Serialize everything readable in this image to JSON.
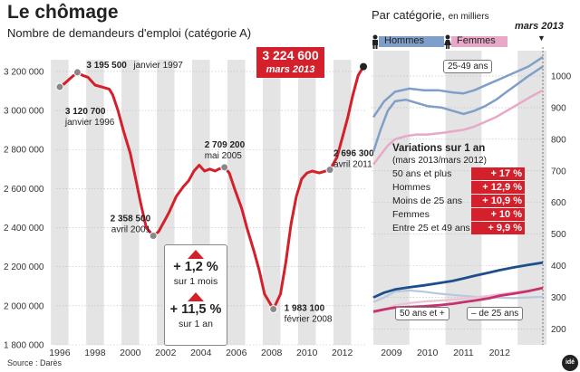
{
  "header": {
    "title": "Le chômage",
    "subtitle": "Nombre de demandeurs d'emploi (catégorie A)",
    "source": "Source : Darès",
    "logo_text": "idé"
  },
  "colors": {
    "red": "#d4202a",
    "blue": "#7f9ec8",
    "pink": "#e8a8c8",
    "darkblue": "#1f4e8c",
    "magenta": "#c4336e",
    "band": "#e4e4e4"
  },
  "chart_data": [
    {
      "type": "line",
      "title": "Nombre de demandeurs d'emploi (catégorie A)",
      "ylim": [
        1800000,
        3260000
      ],
      "xlim": [
        1995.8,
        2013.3
      ],
      "y_ticks": [
        1800000,
        2000000,
        2200000,
        2400000,
        2600000,
        2800000,
        3000000,
        3200000
      ],
      "y_tick_labels": [
        "1 800 000",
        "2 000 000",
        "2 200 000",
        "2 400 000",
        "2 600 000",
        "2 800 000",
        "3 000 000",
        "3 200 000"
      ],
      "x_ticks": [
        1996,
        1998,
        2000,
        2002,
        2004,
        2006,
        2008,
        2010,
        2012
      ],
      "x_tick_labels": [
        "1996",
        "1998",
        "2000",
        "2002",
        "2004",
        "2006",
        "2008",
        "2010",
        "2012"
      ],
      "grid": true,
      "series": [
        {
          "values": [
            [
              1996.0,
              3120700
            ],
            [
              1996.3,
              3140000
            ],
            [
              1996.6,
              3165000
            ],
            [
              1997.0,
              3195500
            ],
            [
              1997.3,
              3180000
            ],
            [
              1997.6,
              3170000
            ],
            [
              1998.0,
              3130000
            ],
            [
              1998.4,
              3120000
            ],
            [
              1998.8,
              3110000
            ],
            [
              1999.0,
              3080000
            ],
            [
              1999.3,
              3000000
            ],
            [
              1999.6,
              2900000
            ],
            [
              2000.0,
              2780000
            ],
            [
              2000.3,
              2650000
            ],
            [
              2000.6,
              2520000
            ],
            [
              2000.9,
              2400000
            ],
            [
              2001.3,
              2358500
            ],
            [
              2001.6,
              2380000
            ],
            [
              2001.9,
              2430000
            ],
            [
              2002.2,
              2480000
            ],
            [
              2002.6,
              2560000
            ],
            [
              2003.0,
              2610000
            ],
            [
              2003.3,
              2640000
            ],
            [
              2003.6,
              2690000
            ],
            [
              2003.9,
              2720000
            ],
            [
              2004.2,
              2690000
            ],
            [
              2004.5,
              2700000
            ],
            [
              2004.8,
              2690000
            ],
            [
              2005.0,
              2700000
            ],
            [
              2005.33,
              2709200
            ],
            [
              2005.6,
              2680000
            ],
            [
              2005.9,
              2600000
            ],
            [
              2006.3,
              2500000
            ],
            [
              2006.6,
              2400000
            ],
            [
              2007.0,
              2280000
            ],
            [
              2007.3,
              2180000
            ],
            [
              2007.6,
              2060000
            ],
            [
              2008.1,
              1983100
            ],
            [
              2008.5,
              2060000
            ],
            [
              2008.8,
              2220000
            ],
            [
              2009.1,
              2420000
            ],
            [
              2009.4,
              2560000
            ],
            [
              2009.7,
              2650000
            ],
            [
              2010.0,
              2680000
            ],
            [
              2010.3,
              2690000
            ],
            [
              2010.7,
              2680000
            ],
            [
              2011.3,
              2696300
            ],
            [
              2011.7,
              2760000
            ],
            [
              2012.0,
              2860000
            ],
            [
              2012.3,
              2960000
            ],
            [
              2012.6,
              3080000
            ],
            [
              2012.9,
              3180000
            ],
            [
              2013.2,
              3224600
            ]
          ]
        }
      ],
      "annotations": [
        {
          "x": 1996.0,
          "y": 3120700,
          "value": "3 120 700",
          "date": "janvier 1996"
        },
        {
          "x": 1997.0,
          "y": 3195500,
          "value": "3 195 500",
          "date": "janvier 1997"
        },
        {
          "x": 2001.3,
          "y": 2358500,
          "value": "2 358 500",
          "date": "avril 2001"
        },
        {
          "x": 2005.33,
          "y": 2709200,
          "value": "2 709 200",
          "date": "mai 2005"
        },
        {
          "x": 2008.1,
          "y": 1983100,
          "value": "1 983 100",
          "date": "février 2008"
        },
        {
          "x": 2011.3,
          "y": 2696300,
          "value": "2 696 300",
          "date": "avril 2011"
        }
      ],
      "highlight": {
        "x": 2013.2,
        "y": 3224600,
        "value": "3 224 600",
        "date": "mars 2013"
      }
    },
    {
      "type": "line",
      "title": "Par catégorie, en milliers",
      "ylim": [
        150,
        1080
      ],
      "xlim": [
        2008.45,
        2013.3
      ],
      "y_ticks": [
        200,
        300,
        400,
        500,
        600,
        700,
        800,
        900,
        1000
      ],
      "y_tick_labels": [
        "200",
        "300",
        "400",
        "500",
        "600",
        "700",
        "800",
        "900",
        "1000"
      ],
      "x_ticks": [
        2009,
        2010,
        2011,
        2012
      ],
      "x_tick_labels": [
        "2009",
        "2010",
        "2011",
        "2012"
      ],
      "marker": "mars 2013",
      "legend": [
        "Hommes",
        "Femmes"
      ],
      "series": [
        {
          "name": "Hommes",
          "color": "#7f9ec8",
          "values": [
            [
              2008.5,
              760
            ],
            [
              2008.7,
              830
            ],
            [
              2008.9,
              890
            ],
            [
              2009.1,
              920
            ],
            [
              2009.4,
              925
            ],
            [
              2009.7,
              915
            ],
            [
              2010.0,
              905
            ],
            [
              2010.4,
              900
            ],
            [
              2010.7,
              890
            ],
            [
              2011.0,
              880
            ],
            [
              2011.3,
              890
            ],
            [
              2011.6,
              905
            ],
            [
              2011.9,
              925
            ],
            [
              2012.2,
              950
            ],
            [
              2012.5,
              975
            ],
            [
              2012.8,
              1000
            ],
            [
              2013.2,
              1030
            ]
          ]
        },
        {
          "name": "Femmes",
          "color": "#e8a8c8",
          "values": [
            [
              2008.5,
              720
            ],
            [
              2008.7,
              750
            ],
            [
              2008.9,
              780
            ],
            [
              2009.1,
              800
            ],
            [
              2009.4,
              810
            ],
            [
              2009.7,
              815
            ],
            [
              2010.0,
              815
            ],
            [
              2010.4,
              820
            ],
            [
              2010.7,
              825
            ],
            [
              2011.0,
              830
            ],
            [
              2011.3,
              840
            ],
            [
              2011.6,
              855
            ],
            [
              2011.9,
              870
            ],
            [
              2012.2,
              890
            ],
            [
              2012.5,
              910
            ],
            [
              2012.8,
              930
            ],
            [
              2013.2,
              955
            ]
          ]
        },
        {
          "name": "25-49 ans",
          "color": "#7f9ec8",
          "values": [
            [
              2008.5,
              870
            ],
            [
              2008.8,
              920
            ],
            [
              2009.1,
              950
            ],
            [
              2009.5,
              960
            ],
            [
              2009.9,
              955
            ],
            [
              2010.3,
              955
            ],
            [
              2010.7,
              948
            ],
            [
              2011.0,
              945
            ],
            [
              2011.3,
              955
            ],
            [
              2011.7,
              975
            ],
            [
              2012.0,
              990
            ],
            [
              2012.4,
              1010
            ],
            [
              2012.8,
              1030
            ],
            [
              2013.2,
              1060
            ]
          ]
        },
        {
          "name": "50 ans et +",
          "color": "#1f4e8c",
          "values": [
            [
              2008.5,
              300
            ],
            [
              2008.8,
              315
            ],
            [
              2009.1,
              325
            ],
            [
              2009.5,
              332
            ],
            [
              2009.9,
              338
            ],
            [
              2010.3,
              345
            ],
            [
              2010.7,
              352
            ],
            [
              2011.0,
              360
            ],
            [
              2011.3,
              368
            ],
            [
              2011.7,
              378
            ],
            [
              2012.0,
              386
            ],
            [
              2012.4,
              395
            ],
            [
              2012.8,
              403
            ],
            [
              2013.2,
              410
            ]
          ]
        },
        {
          "name": "– de 25 ans",
          "color": "#c4336e",
          "values": [
            [
              2008.5,
              255
            ],
            [
              2008.8,
              262
            ],
            [
              2009.1,
              268
            ],
            [
              2009.5,
              270
            ],
            [
              2009.9,
              272
            ],
            [
              2010.3,
              275
            ],
            [
              2010.7,
              280
            ],
            [
              2011.0,
              285
            ],
            [
              2011.3,
              290
            ],
            [
              2011.7,
              297
            ],
            [
              2012.0,
              305
            ],
            [
              2012.4,
              312
            ],
            [
              2012.8,
              320
            ],
            [
              2013.2,
              330
            ]
          ]
        },
        {
          "name": "– de 25 ans (pâle)",
          "color": "#b9c8de",
          "values": [
            [
              2008.5,
              285
            ],
            [
              2008.8,
              300
            ],
            [
              2009.1,
              318
            ],
            [
              2009.5,
              322
            ],
            [
              2009.9,
              318
            ],
            [
              2010.3,
              312
            ],
            [
              2010.7,
              308
            ],
            [
              2011.0,
              305
            ],
            [
              2011.3,
              302
            ],
            [
              2011.7,
              300
            ],
            [
              2012.0,
              299
            ],
            [
              2012.4,
              298
            ],
            [
              2012.8,
              300
            ],
            [
              2013.2,
              302
            ]
          ]
        },
        {
          "name": "Femmes (pâle)",
          "color": "#ecc3d6",
          "values": [
            [
              2008.5,
              250
            ],
            [
              2008.8,
              262
            ],
            [
              2009.1,
              275
            ],
            [
              2009.5,
              282
            ],
            [
              2009.9,
              287
            ],
            [
              2010.3,
              290
            ],
            [
              2010.7,
              293
            ],
            [
              2011.0,
              296
            ],
            [
              2011.3,
              300
            ],
            [
              2011.7,
              305
            ],
            [
              2012.0,
              310
            ],
            [
              2012.4,
              316
            ],
            [
              2012.8,
              322
            ],
            [
              2013.2,
              328
            ]
          ]
        }
      ],
      "labels": [
        "25-49 ans",
        "50 ans et +",
        "– de 25 ans"
      ]
    }
  ],
  "variations": {
    "title": "Variations sur 1 an",
    "subtitle": "(mars 2013/mars 2012)",
    "rows": [
      {
        "label": "50 ans et plus",
        "value": "+ 17 %"
      },
      {
        "label": "Hommes",
        "value": "+ 12,9 %"
      },
      {
        "label": "Moins de 25 ans",
        "value": "+ 10,9 %"
      },
      {
        "label": "Femmes",
        "value": "+ 10 %"
      },
      {
        "label": "Entre 25 et 49 ans",
        "value": "+ 9,9 %"
      }
    ]
  },
  "deltas": {
    "month_value": "+ 1,2 %",
    "month_label": "sur 1 mois",
    "year_value": "+ 11,5 %",
    "year_label": "sur 1 an"
  },
  "right": {
    "title": "Par catégorie,",
    "title_small": "en milliers",
    "marker": "mars 2013",
    "legend_men": "Hommes",
    "legend_women": "Femmes"
  }
}
